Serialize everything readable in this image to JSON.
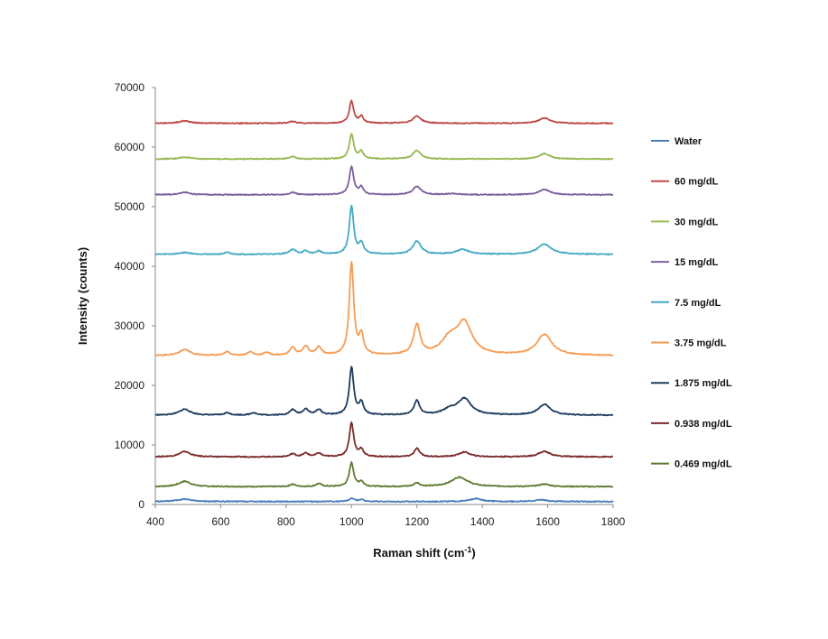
{
  "chart_data": {
    "type": "line",
    "title": "",
    "xlabel_main": "Raman shift (cm",
    "xlabel_sup": "-1",
    "xlabel_end": ")",
    "ylabel": "Intensity (counts)",
    "xlim": [
      400,
      1800
    ],
    "ylim": [
      0,
      70000
    ],
    "xticks": [
      400,
      600,
      800,
      1000,
      1200,
      1400,
      1600,
      1800
    ],
    "yticks": [
      0,
      10000,
      20000,
      30000,
      40000,
      50000,
      60000,
      70000
    ],
    "legend_position": "right",
    "series": [
      {
        "name": "Water",
        "color": "#4a7ebb",
        "baseline": 500,
        "peaks": [
          [
            490,
            400,
            25
          ],
          [
            1000,
            500,
            10
          ],
          [
            1030,
            300,
            10
          ],
          [
            1380,
            500,
            20
          ],
          [
            1580,
            300,
            20
          ]
        ]
      },
      {
        "name": "60 mg/dL",
        "color": "#be4b48",
        "baseline": 64000,
        "peaks": [
          [
            490,
            400,
            20
          ],
          [
            820,
            300,
            12
          ],
          [
            1000,
            3700,
            8
          ],
          [
            1030,
            1100,
            8
          ],
          [
            1200,
            1200,
            15
          ],
          [
            1590,
            900,
            20
          ]
        ]
      },
      {
        "name": "30 mg/dL",
        "color": "#98b954",
        "baseline": 58000,
        "peaks": [
          [
            490,
            300,
            20
          ],
          [
            820,
            400,
            12
          ],
          [
            1000,
            4200,
            8
          ],
          [
            1030,
            1200,
            8
          ],
          [
            1200,
            1400,
            15
          ],
          [
            1590,
            900,
            20
          ]
        ]
      },
      {
        "name": "15 mg/dL",
        "color": "#7d60a0",
        "baseline": 52000,
        "peaks": [
          [
            490,
            400,
            20
          ],
          [
            820,
            400,
            12
          ],
          [
            1000,
            4700,
            8
          ],
          [
            1030,
            1200,
            8
          ],
          [
            1200,
            1400,
            15
          ],
          [
            1310,
            200,
            20
          ],
          [
            1590,
            900,
            20
          ]
        ]
      },
      {
        "name": "7.5 mg/dL",
        "color": "#46aac4",
        "baseline": 42000,
        "peaks": [
          [
            490,
            300,
            20
          ],
          [
            620,
            300,
            10
          ],
          [
            820,
            800,
            12
          ],
          [
            860,
            500,
            10
          ],
          [
            900,
            500,
            10
          ],
          [
            1000,
            8000,
            8
          ],
          [
            1030,
            1800,
            8
          ],
          [
            1200,
            2200,
            15
          ],
          [
            1340,
            800,
            22
          ],
          [
            1590,
            1700,
            25
          ]
        ]
      },
      {
        "name": "3.75 mg/dL",
        "color": "#f59d56",
        "baseline": 25000,
        "peaks": [
          [
            490,
            1000,
            20
          ],
          [
            620,
            600,
            10
          ],
          [
            690,
            600,
            10
          ],
          [
            740,
            500,
            10
          ],
          [
            820,
            1300,
            10
          ],
          [
            860,
            1500,
            10
          ],
          [
            900,
            1300,
            10
          ],
          [
            1000,
            15500,
            8
          ],
          [
            1030,
            3200,
            8
          ],
          [
            1200,
            5000,
            12
          ],
          [
            1300,
            2500,
            30
          ],
          [
            1345,
            5200,
            28
          ],
          [
            1590,
            3500,
            28
          ]
        ]
      },
      {
        "name": "1.875 mg/dL",
        "color": "#1f3d5f",
        "baseline": 15000,
        "peaks": [
          [
            490,
            1000,
            20
          ],
          [
            620,
            400,
            10
          ],
          [
            700,
            400,
            10
          ],
          [
            820,
            900,
            10
          ],
          [
            860,
            1000,
            10
          ],
          [
            900,
            900,
            10
          ],
          [
            1000,
            8000,
            8
          ],
          [
            1030,
            2000,
            8
          ],
          [
            1200,
            2400,
            10
          ],
          [
            1300,
            800,
            25
          ],
          [
            1345,
            2700,
            25
          ],
          [
            1590,
            1800,
            22
          ]
        ]
      },
      {
        "name": "0.938 mg/dL",
        "color": "#7b2c2c",
        "baseline": 8000,
        "peaks": [
          [
            490,
            900,
            20
          ],
          [
            820,
            500,
            10
          ],
          [
            860,
            600,
            10
          ],
          [
            900,
            600,
            10
          ],
          [
            1000,
            5700,
            8
          ],
          [
            1030,
            1200,
            8
          ],
          [
            1200,
            1400,
            10
          ],
          [
            1345,
            800,
            20
          ],
          [
            1590,
            900,
            22
          ]
        ]
      },
      {
        "name": "0.469 mg/dL",
        "color": "#607b33",
        "baseline": 3000,
        "peaks": [
          [
            490,
            900,
            22
          ],
          [
            820,
            400,
            10
          ],
          [
            900,
            500,
            10
          ],
          [
            1000,
            4000,
            8
          ],
          [
            1030,
            800,
            8
          ],
          [
            1200,
            600,
            10
          ],
          [
            1330,
            1600,
            30
          ],
          [
            1590,
            400,
            20
          ]
        ]
      }
    ]
  }
}
